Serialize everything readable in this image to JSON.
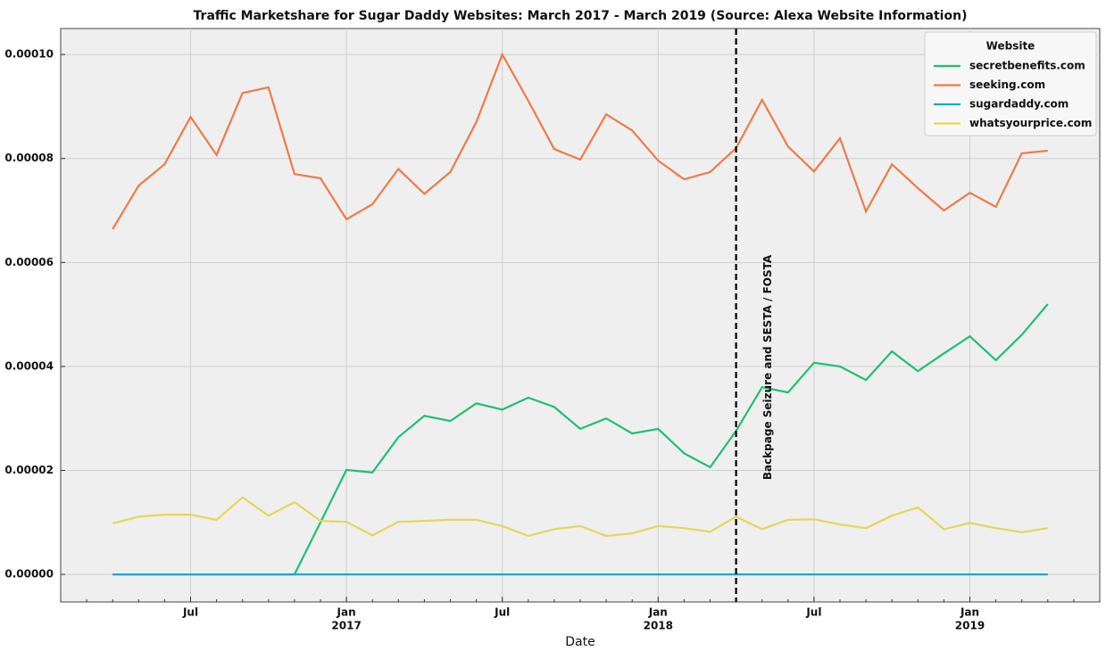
{
  "chart_data": {
    "type": "line",
    "title": "Traffic Marketshare for Sugar Daddy Websites: March 2017 - March 2019 (Source: Alexa Website Information)",
    "xlabel": "Date",
    "x": [
      "2016-04",
      "2016-05",
      "2016-06",
      "2016-07",
      "2016-08",
      "2016-09",
      "2016-10",
      "2016-11",
      "2016-12",
      "2017-01",
      "2017-02",
      "2017-03",
      "2017-04",
      "2017-05",
      "2017-06",
      "2017-07",
      "2017-08",
      "2017-09",
      "2017-10",
      "2017-11",
      "2017-12",
      "2018-01",
      "2018-02",
      "2018-03",
      "2018-04",
      "2018-05",
      "2018-06",
      "2018-07",
      "2018-08",
      "2018-09",
      "2018-10",
      "2018-11",
      "2018-12",
      "2019-01",
      "2019-02",
      "2019-03",
      "2019-04"
    ],
    "series": [
      {
        "name": "secretbenefits.com",
        "color": "#1fbf72",
        "values": [
          0,
          0,
          0,
          0,
          0,
          0,
          0,
          0,
          1e-05,
          2.01e-05,
          1.96e-05,
          2.64e-05,
          3.05e-05,
          2.95e-05,
          3.29e-05,
          3.17e-05,
          3.4e-05,
          3.22e-05,
          2.8e-05,
          3e-05,
          2.71e-05,
          2.8e-05,
          2.33e-05,
          2.06e-05,
          2.76e-05,
          3.6e-05,
          3.5e-05,
          4.07e-05,
          4e-05,
          3.74e-05,
          4.29e-05,
          3.91e-05,
          4.25e-05,
          4.58e-05,
          4.12e-05,
          4.61e-05,
          5.2e-05
        ]
      },
      {
        "name": "seeking.com",
        "color": "#f07a48",
        "values": [
          6.64e-05,
          7.48e-05,
          7.89e-05,
          8.8e-05,
          8.07e-05,
          9.26e-05,
          9.37e-05,
          7.7e-05,
          7.62e-05,
          6.83e-05,
          7.12e-05,
          7.8e-05,
          7.32e-05,
          7.74e-05,
          8.7e-05,
          0.0001,
          9.11e-05,
          8.18e-05,
          7.98e-05,
          8.85e-05,
          8.54e-05,
          7.96e-05,
          7.6e-05,
          7.74e-05,
          8.2e-05,
          9.13e-05,
          8.23e-05,
          7.75e-05,
          8.39e-05,
          6.98e-05,
          7.89e-05,
          7.43e-05,
          7e-05,
          7.34e-05,
          7.07e-05,
          8.1e-05,
          8.15e-05
        ]
      },
      {
        "name": "sugardaddy.com",
        "color": "#1aa9d9",
        "values": [
          0,
          0,
          0,
          0,
          0,
          0,
          0,
          0,
          0,
          0,
          0,
          0,
          0,
          0,
          0,
          0,
          0,
          0,
          0,
          0,
          0,
          0,
          0,
          0,
          0,
          0,
          0,
          0,
          0,
          0,
          0,
          0,
          0,
          0,
          0,
          0,
          0
        ]
      },
      {
        "name": "whatsyourprice.com",
        "color": "#e6d65a",
        "values": [
          9.8e-06,
          1.11e-05,
          1.15e-05,
          1.15e-05,
          1.05e-05,
          1.48e-05,
          1.13e-05,
          1.39e-05,
          1.03e-05,
          1.01e-05,
          7.5e-06,
          1.01e-05,
          1.03e-05,
          1.05e-05,
          1.05e-05,
          9.3e-06,
          7.4e-06,
          8.7e-06,
          9.3e-06,
          7.4e-06,
          7.9e-06,
          9.3e-06,
          8.9e-06,
          8.2e-06,
          1.11e-05,
          8.7e-06,
          1.05e-05,
          1.06e-05,
          9.6e-06,
          8.9e-06,
          1.13e-05,
          1.29e-05,
          8.7e-06,
          9.9e-06,
          8.9e-06,
          8.1e-06,
          8.9e-06
        ]
      }
    ],
    "xlim": [
      "2016-02",
      "2019-06"
    ],
    "xticks": [
      {
        "value": "2016-07",
        "label": "Jul"
      },
      {
        "value": "2017-01",
        "label": "Jan",
        "year": "2017"
      },
      {
        "value": "2017-07",
        "label": "Jul"
      },
      {
        "value": "2018-01",
        "label": "Jan",
        "year": "2018"
      },
      {
        "value": "2018-07",
        "label": "Jul"
      },
      {
        "value": "2019-01",
        "label": "Jan",
        "year": "2019"
      }
    ],
    "ylim": [
      -5.3e-06,
      0.000105
    ],
    "yticks": [
      {
        "value": 0,
        "label": "0.00000"
      },
      {
        "value": 2e-05,
        "label": "0.00002"
      },
      {
        "value": 4e-05,
        "label": "0.00004"
      },
      {
        "value": 6e-05,
        "label": "0.00006"
      },
      {
        "value": 8e-05,
        "label": "0.00008"
      },
      {
        "value": 0.0001,
        "label": "0.00010"
      }
    ],
    "grid": true,
    "legend": {
      "title": "Website",
      "position": "upper right"
    },
    "vline": {
      "x": "2018-04",
      "label": "Backpage Seizure and SESTA / FOSTA",
      "color": "#000000"
    }
  }
}
